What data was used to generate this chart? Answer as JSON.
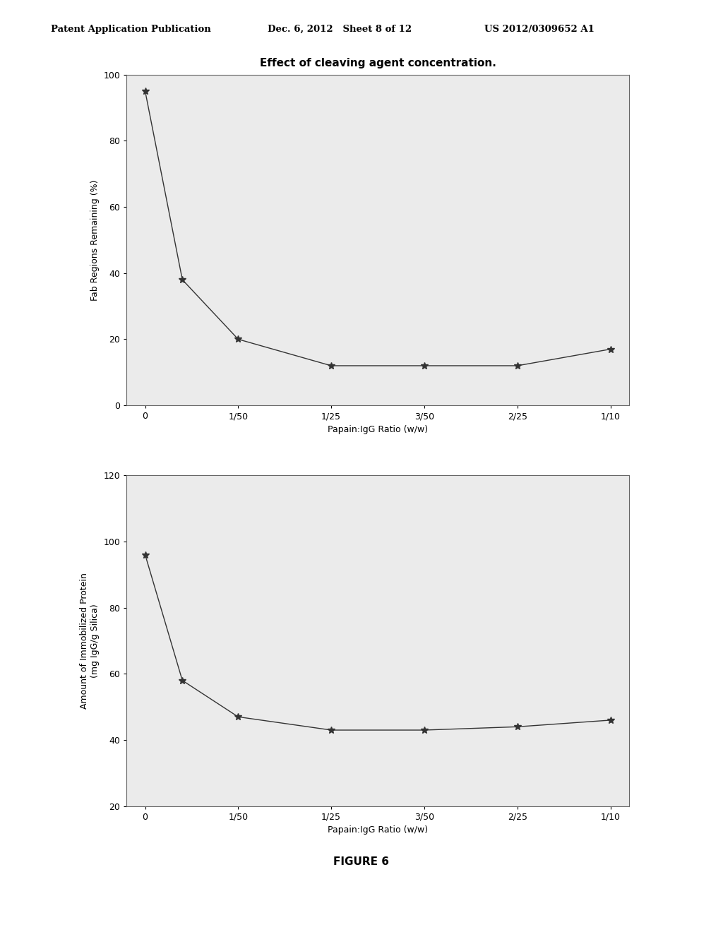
{
  "title": "Effect of cleaving agent concentration.",
  "header_left": "Patent Application Publication",
  "header_mid": "Dec. 6, 2012   Sheet 8 of 12",
  "header_right": "US 2012/0309652 A1",
  "figure_label": "FIGURE 6",
  "top_chart": {
    "ylabel": "Fab Regions Remaining (%)",
    "xlabel": "Papain:IgG Ratio (w/w)",
    "ylim": [
      0,
      100
    ],
    "yticks": [
      0,
      20,
      40,
      60,
      80,
      100
    ],
    "xtick_labels": [
      "0",
      "1/50",
      "1/25",
      "3/50",
      "2/25",
      "1/10"
    ],
    "x_values": [
      0,
      1,
      2,
      3,
      4,
      5
    ],
    "y_values": [
      95,
      38,
      12,
      12,
      12,
      17
    ]
  },
  "bottom_chart": {
    "ylabel": "Amount of Immobilized Protein\n(mg IgG/g Silica)",
    "xlabel": "Papain:IgG Ratio (w/w)",
    "ylim": [
      20,
      120
    ],
    "yticks": [
      20,
      40,
      60,
      80,
      100,
      120
    ],
    "xtick_labels": [
      "0",
      "1/50",
      "1/25",
      "3/50",
      "2/25",
      "1/10"
    ],
    "x_values": [
      0,
      1,
      2,
      3,
      4,
      5
    ],
    "y_values": [
      96,
      58,
      43,
      43,
      44,
      46
    ]
  },
  "line_color": "#333333",
  "marker": "*",
  "marker_size": 7,
  "bg_color": "#ffffff",
  "plot_bg": "#ebebeb"
}
